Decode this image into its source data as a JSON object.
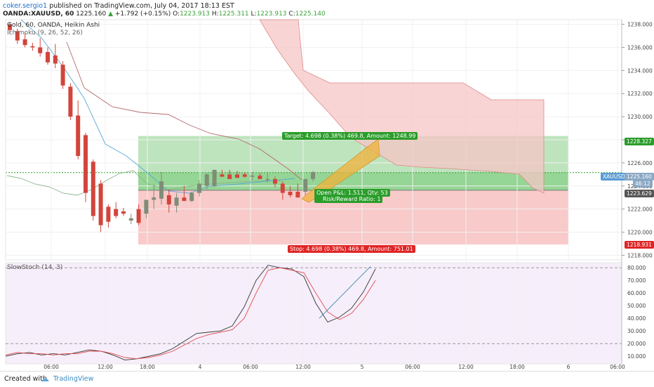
{
  "header": {
    "author": "coker.sergio1",
    "published_text": "published on TradingView.com, July 04, 2017 18:13 EST",
    "symbol": "OANDA:XAUUSD, 60",
    "last": "1225.160",
    "change": "+1.792 (+0.15%)",
    "o_label": "O:",
    "o": "1223.913",
    "h_label": "H:",
    "h": "1225.311",
    "l_label": "L:",
    "l": "1223.913",
    "c_label": "C:",
    "c": "1225.140"
  },
  "legend": {
    "main": "Gold, 60, OANDA, Heikin Ashi",
    "ichimoku": "Ichimoku (9, 26, 52, 26)",
    "stoch": "SlowStoch (14, 3)"
  },
  "position": {
    "target": "Target: 4.698 (0.38%) 469.8, Amount: 1248.99",
    "pnl": "Open P&L: 1.511, Qty: 53",
    "rr": "Risk/Reward Ratio: 1",
    "stop": "Stop: 4.698 (0.38%) 469.8, Amount: 751.01"
  },
  "price_tags": {
    "target_price": "1228.327",
    "symbol": "XAUUSD",
    "current": "1225.160",
    "countdown": "46:12",
    "entry": "1223.629",
    "stop_price": "1218.931"
  },
  "colors": {
    "bull": "#7f8d77",
    "bear": "#d2453c",
    "profit_zone": "#a8dba8",
    "loss_zone": "#f7b8b8",
    "cloud": "#f6c5c5",
    "projection": "#f0b23a",
    "stoch_k": "#333333",
    "stoch_d": "#e04b4b"
  },
  "footer": {
    "created_with": "Created with",
    "brand": "TradingView"
  },
  "chart_data": [
    {
      "type": "candlestick",
      "title": "Gold, 60, OANDA, Heikin Ashi",
      "y_ticks": [
        1218.0,
        1220.0,
        1222.0,
        1224.0,
        1226.0,
        1228.0,
        1230.0,
        1232.0,
        1234.0,
        1236.0,
        1238.0
      ],
      "ylim": [
        1217.6,
        1238.4
      ],
      "x_ticks": [
        "06:00",
        "12:00",
        "18:00",
        "4",
        "06:00",
        "12:00",
        "5",
        "06:00",
        "12:00",
        "18:00",
        "6",
        "06:00"
      ],
      "candles": [
        [
          1238.0,
          1238.2,
          1237.2,
          1237.5
        ],
        [
          1237.4,
          1237.6,
          1236.3,
          1236.6
        ],
        [
          1236.7,
          1237.3,
          1236.0,
          1236.2
        ],
        [
          1236.1,
          1236.4,
          1235.7,
          1236.0
        ],
        [
          1236.0,
          1236.8,
          1235.2,
          1235.5
        ],
        [
          1235.6,
          1236.0,
          1234.5,
          1234.7
        ],
        [
          1235.3,
          1236.3,
          1234.2,
          1234.6
        ],
        [
          1234.5,
          1234.8,
          1232.4,
          1232.7
        ],
        [
          1232.6,
          1232.9,
          1229.7,
          1230.0
        ],
        [
          1230.1,
          1231.4,
          1226.3,
          1226.6
        ],
        [
          1228.4,
          1228.6,
          1222.6,
          1223.4
        ],
        [
          1226.1,
          1226.3,
          1221.0,
          1221.4
        ],
        [
          1224.2,
          1224.5,
          1220.0,
          1220.6
        ],
        [
          1222.2,
          1222.4,
          1220.4,
          1220.9
        ],
        [
          1222.0,
          1222.6,
          1221.2,
          1221.4
        ],
        [
          1221.8,
          1222.1,
          1221.4,
          1221.6
        ],
        [
          1221.0,
          1221.6,
          1220.7,
          1221.2
        ],
        [
          1222.0,
          1222.4,
          1220.6,
          1220.8
        ],
        [
          1221.6,
          1222.8,
          1221.2,
          1222.8
        ],
        [
          1222.8,
          1224.1,
          1222.0,
          1223.0
        ],
        [
          1222.9,
          1225.2,
          1222.4,
          1224.4
        ],
        [
          1223.2,
          1223.7,
          1221.7,
          1222.4
        ],
        [
          1222.3,
          1223.4,
          1221.7,
          1223.0
        ],
        [
          1223.0,
          1224.0,
          1222.9,
          1222.7
        ],
        [
          1222.7,
          1223.5,
          1222.6,
          1223.4
        ],
        [
          1223.4,
          1224.5,
          1223.1,
          1224.2
        ],
        [
          1224.0,
          1225.1,
          1223.7,
          1225.0
        ],
        [
          1224.0,
          1225.3,
          1223.9,
          1225.4
        ],
        [
          1225.0,
          1225.4,
          1224.8,
          1224.8
        ],
        [
          1225.0,
          1225.4,
          1224.7,
          1224.6
        ],
        [
          1225.0,
          1225.3,
          1224.7,
          1224.7
        ],
        [
          1225.0,
          1225.2,
          1224.7,
          1224.8
        ],
        [
          1224.8,
          1225.2,
          1224.5,
          1224.9
        ],
        [
          1224.9,
          1225.1,
          1224.6,
          1224.6
        ],
        [
          1224.5,
          1225.1,
          1224.3,
          1224.6
        ],
        [
          1224.6,
          1224.8,
          1223.9,
          1224.2
        ],
        [
          1224.2,
          1224.4,
          1222.8,
          1223.4
        ],
        [
          1223.5,
          1224.0,
          1223.0,
          1223.2
        ],
        [
          1223.5,
          1224.2,
          1223.1,
          1223.0
        ],
        [
          1223.5,
          1224.6,
          1223.2,
          1224.6
        ],
        [
          1224.6,
          1225.3,
          1224.4,
          1225.2
        ]
      ],
      "position": {
        "direction": "long",
        "entry": 1223.629,
        "target": 1228.327,
        "stop": 1218.931,
        "current": 1225.16
      }
    },
    {
      "type": "line",
      "title": "SlowStoch (14, 3)",
      "y_ticks": [
        10.0,
        20.0,
        30.0,
        40.0,
        50.0,
        60.0,
        70.0,
        80.0
      ],
      "ylim": [
        4,
        84
      ],
      "bands": [
        20,
        80
      ],
      "series": [
        {
          "values": [
            10,
            12,
            13,
            11,
            12,
            11,
            13,
            15,
            14,
            11,
            7,
            8,
            10,
            12,
            16,
            22,
            28,
            29,
            30,
            34,
            49,
            70,
            82,
            80,
            79,
            73,
            52,
            37,
            41,
            48,
            61,
            79
          ]
        },
        {
          "values": [
            11,
            13,
            12,
            12,
            11,
            12,
            12,
            14,
            14,
            12,
            9,
            8,
            9,
            11,
            14,
            19,
            24,
            27,
            29,
            31,
            40,
            60,
            78,
            80,
            78,
            76,
            60,
            45,
            39,
            44,
            55,
            70
          ]
        }
      ]
    }
  ]
}
